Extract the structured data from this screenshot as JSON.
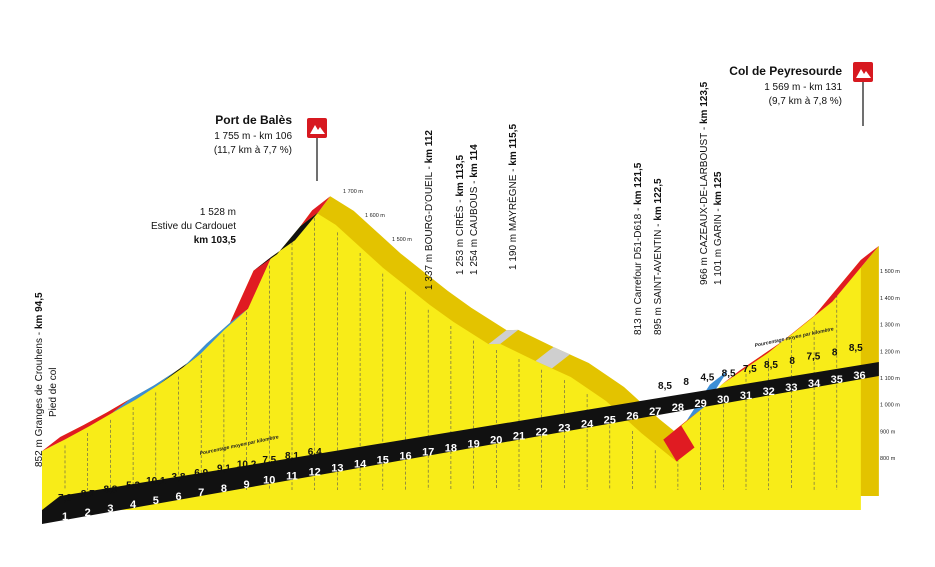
{
  "chart_data": {
    "type": "area",
    "profile": [
      {
        "km": 94.5,
        "alt": 852
      },
      {
        "km": 95.5,
        "alt": 897
      },
      {
        "km": 96.5,
        "alt": 945
      },
      {
        "km": 97.5,
        "alt": 996
      },
      {
        "km": 98.5,
        "alt": 1046
      },
      {
        "km": 99.5,
        "alt": 1103
      },
      {
        "km": 100.5,
        "alt": 1166
      },
      {
        "km": 101.5,
        "alt": 1255
      },
      {
        "km": 102.5,
        "alt": 1333
      },
      {
        "km": 103.5,
        "alt": 1528
      },
      {
        "km": 104.5,
        "alt": 1590
      },
      {
        "km": 105.5,
        "alt": 1696
      },
      {
        "km": 106,
        "alt": 1755
      },
      {
        "km": 107,
        "alt": 1700
      },
      {
        "km": 108,
        "alt": 1620
      },
      {
        "km": 109,
        "alt": 1540
      },
      {
        "km": 110,
        "alt": 1470
      },
      {
        "km": 111,
        "alt": 1400
      },
      {
        "km": 112,
        "alt": 1337
      },
      {
        "km": 113.5,
        "alt": 1253
      },
      {
        "km": 114,
        "alt": 1254
      },
      {
        "km": 115.5,
        "alt": 1190
      },
      {
        "km": 117,
        "alt": 1130
      },
      {
        "km": 118.5,
        "alt": 1040
      },
      {
        "km": 120,
        "alt": 920
      },
      {
        "km": 121.5,
        "alt": 813
      },
      {
        "km": 122.5,
        "alt": 895
      },
      {
        "km": 123.5,
        "alt": 966
      },
      {
        "km": 125,
        "alt": 1101
      },
      {
        "km": 127,
        "alt": 1220
      },
      {
        "km": 129,
        "alt": 1360
      },
      {
        "km": 131,
        "alt": 1569
      }
    ],
    "km_labels": [
      "1",
      "2",
      "3",
      "4",
      "5",
      "6",
      "7",
      "8",
      "9",
      "10",
      "11",
      "12",
      "13",
      "14",
      "15",
      "16",
      "17",
      "18",
      "19",
      "20",
      "21",
      "22",
      "23",
      "24",
      "25",
      "26",
      "27",
      "28",
      "29",
      "30",
      "31",
      "32",
      "33",
      "34",
      "35",
      "36"
    ],
    "gradients_first": [
      "7,3",
      "8,7",
      "8,8",
      "5,3",
      "10,1",
      "3,8",
      "6,9",
      "9,1",
      "10,2",
      "7,5",
      "8,1",
      "6,4"
    ],
    "gradients_second": [
      "8,5",
      "8",
      "4,5",
      "8,5",
      "7,5",
      "8,5",
      "8",
      "7,5",
      "8",
      "8,5"
    ],
    "legend_first": "Pourcentage moyen par kilomètre",
    "legend_second": "Pourcentage moyen par kilomètre",
    "alt_scale": [
      "1 500 m",
      "1 400 m",
      "1 300 m",
      "1 200 m",
      "1 100 m",
      "1 000 m",
      "900 m",
      "800 m"
    ],
    "alt_markers": [
      "1 700 m",
      "1 600 m",
      "1 500 m"
    ],
    "climbs": [
      {
        "name": "Port de Balès",
        "line1": "1 755 m - km 106",
        "line2": "(11,7 km à 7,7 %)"
      },
      {
        "name": "Col de Peyresourde",
        "line1": "1 569 m - km 131",
        "line2": "(9,7 km à 7,8 %)"
      }
    ],
    "start_point": {
      "label": "852 m Granges de Crouhens - ",
      "km": "km 94,5",
      "sub": "Pied de col"
    },
    "estive": {
      "alt": "1 528 m",
      "name": "Estive du Cardouet",
      "km": "km 103,5"
    },
    "waypoints": [
      {
        "text": "1 337 m BOURG-D'OUEIL - ",
        "km": "km 112"
      },
      {
        "text": "1 253 m CIRÈS - ",
        "km": "km 113,5"
      },
      {
        "text": "1 254 m CAUBOUS - ",
        "km": "km 114"
      },
      {
        "text": "1 190 m MAYRÈGNE - ",
        "km": "km 115,5"
      },
      {
        "text": "813 m Carrefour D51-D618 - ",
        "km": "km 121,5"
      },
      {
        "text": "895 m SAINT-AVENTIN - ",
        "km": "km 122,5"
      },
      {
        "text": "966 m CAZEAUX-DE-LARBOUST - ",
        "km": "km 123,5"
      },
      {
        "text": "1 101 m GARIN - ",
        "km": "km 125"
      }
    ],
    "colors": {
      "fill": "#f8ec18",
      "side": "#e3c300",
      "cat_red": "#e01b22",
      "cat_black": "#111111",
      "cat_blue": "#3b8ed6",
      "base": "#111111",
      "flag": "#d71920"
    }
  }
}
